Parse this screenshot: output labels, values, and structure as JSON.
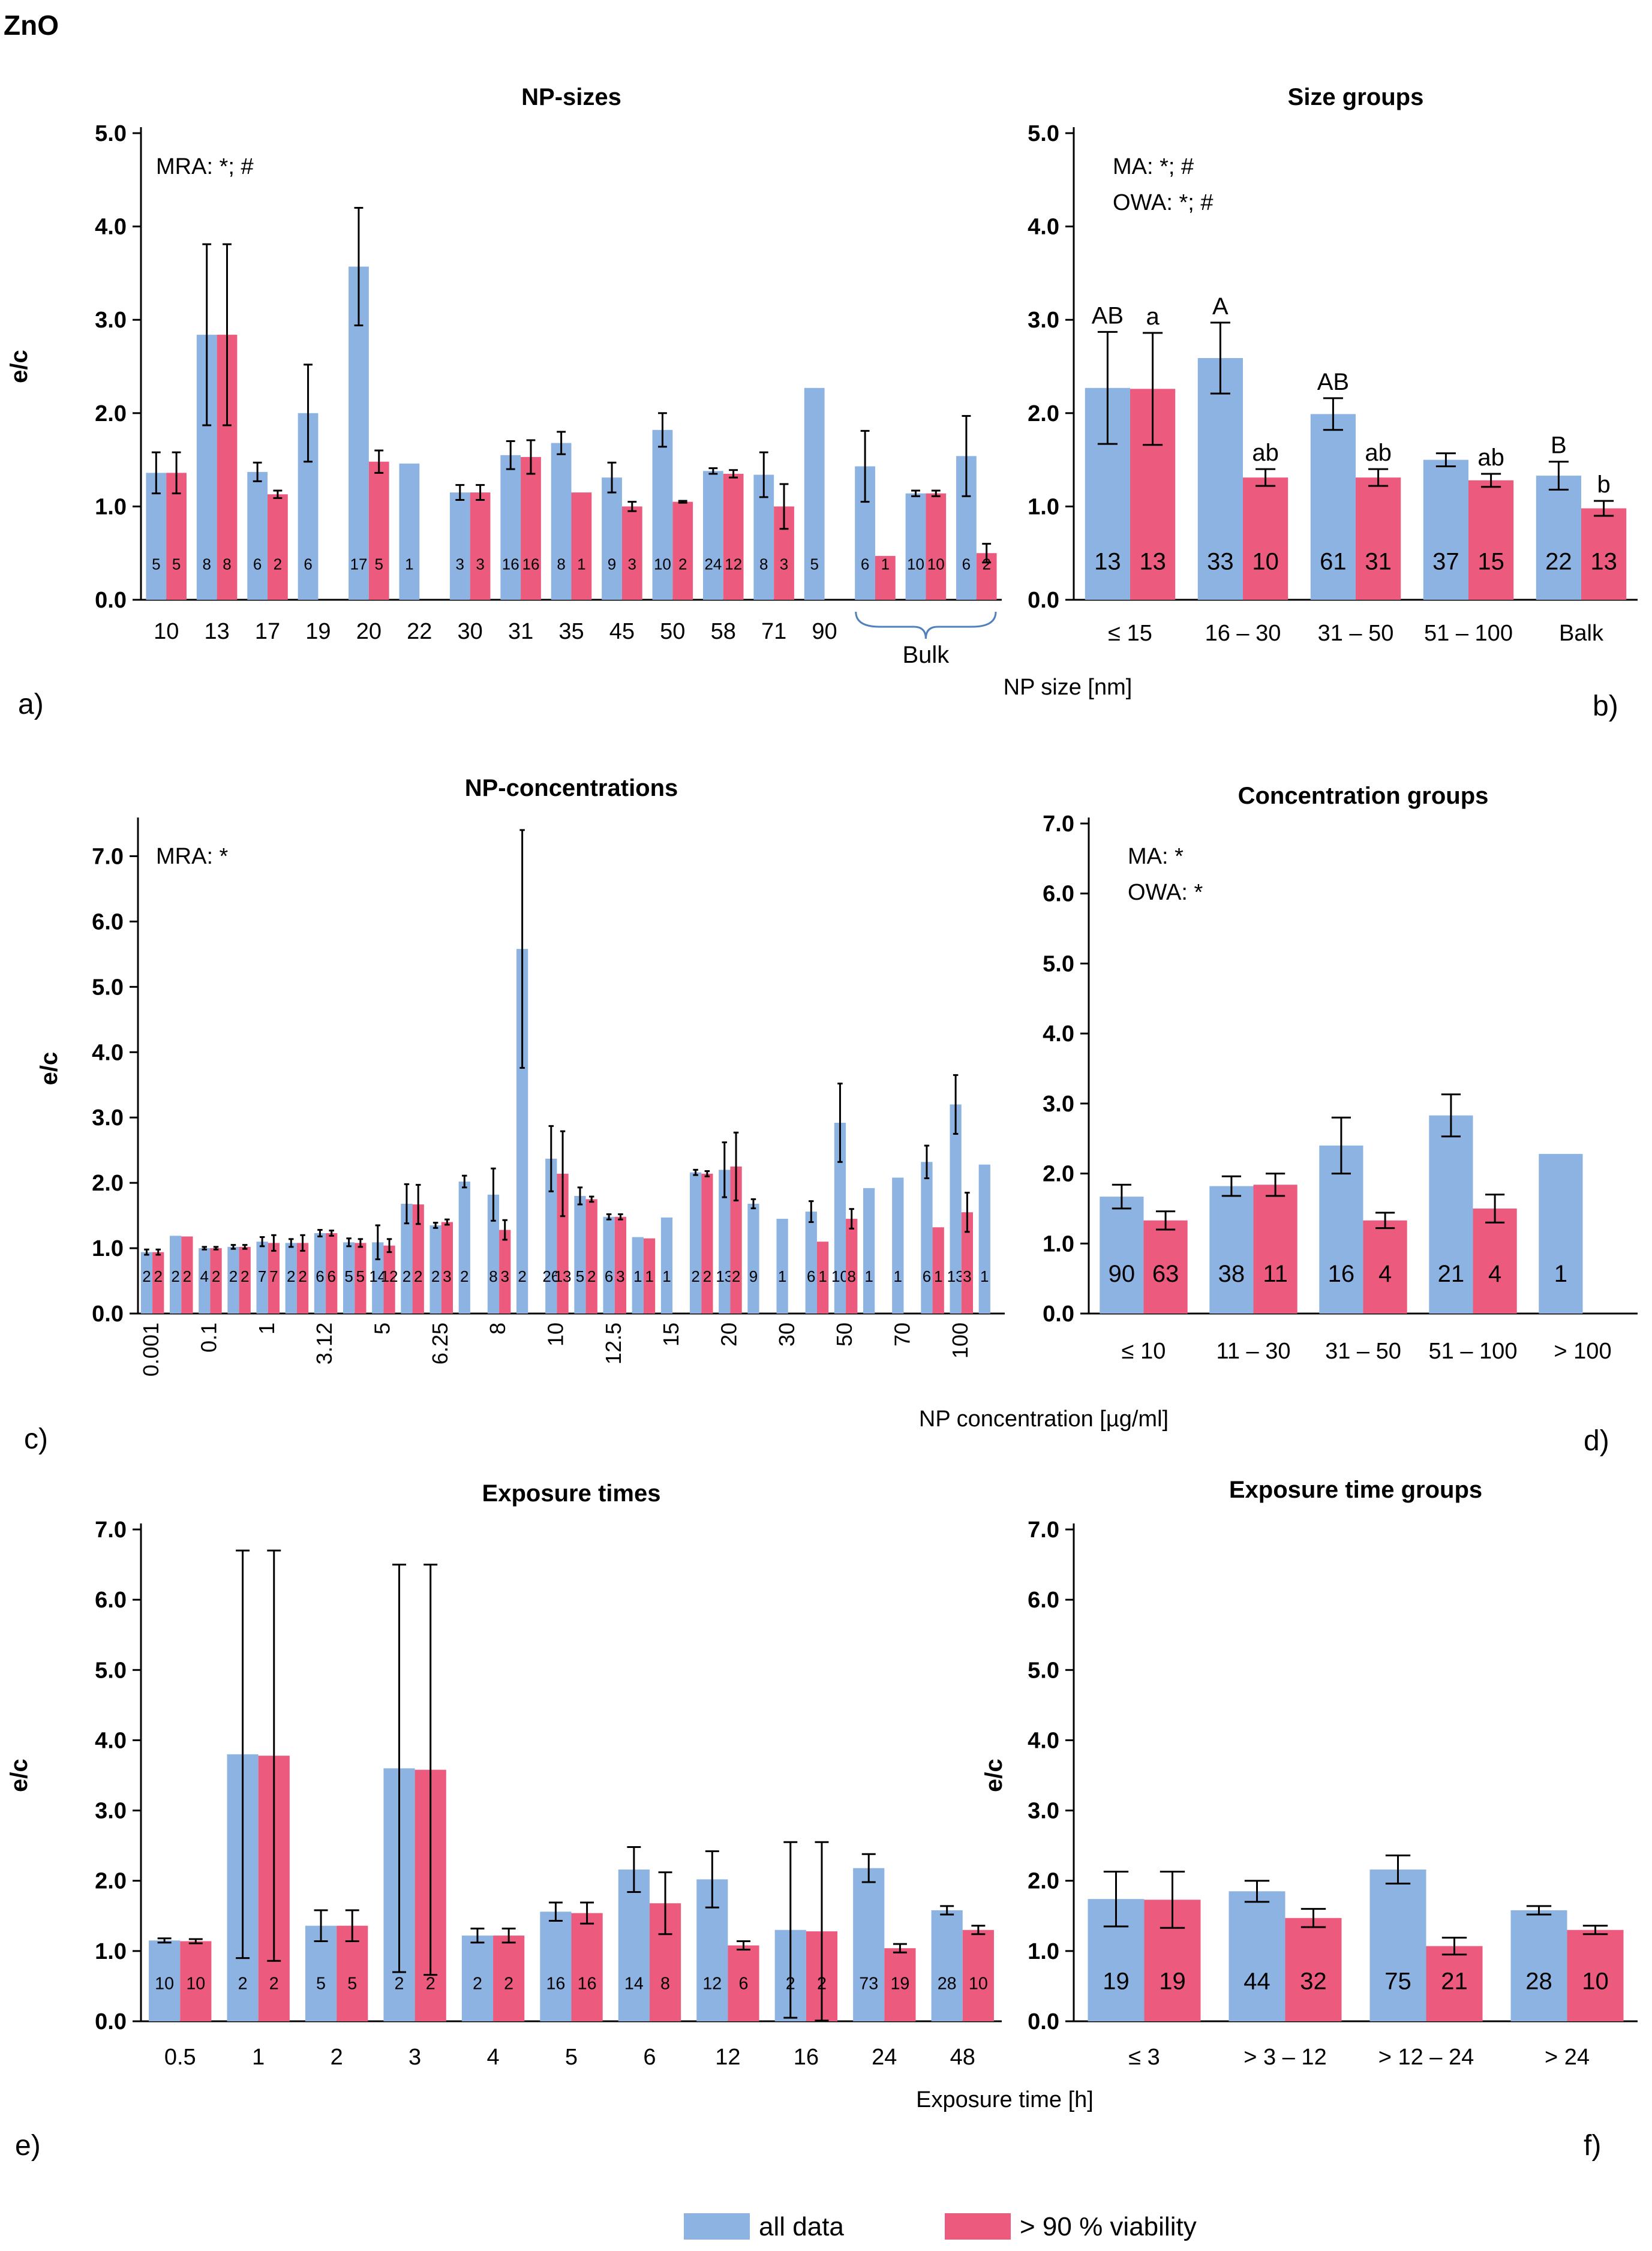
{
  "figure": {
    "title": "ZnO",
    "colors": {
      "all": "#8db3e2",
      "viab": "#ec5b7d",
      "axis": "#000000"
    },
    "legend": {
      "all_label": "all data",
      "viab_label": "> 90 % viability"
    },
    "xlabels": {
      "row1": "NP size [nm]",
      "row2": "NP concentration [µg/ml]",
      "row3": "Exposure time [h]"
    }
  },
  "chart_data": [
    {
      "id": "a",
      "panel_label": "a)",
      "type": "bar",
      "title": "NP-sizes",
      "ylabel": "e/c",
      "ylim": [
        0,
        5
      ],
      "yticks": [
        "0.0",
        "1.0",
        "2.0",
        "3.0",
        "4.0",
        "5.0"
      ],
      "annotation": [
        "MRA: *; #"
      ],
      "categories": [
        "10",
        "13",
        "17",
        "19",
        "20",
        "22",
        "30",
        "31",
        "35",
        "45",
        "50",
        "58",
        "71",
        "90",
        "Bulk1",
        "Bulk2",
        "Bulk3"
      ],
      "tick_labels": [
        "10",
        "13",
        "17",
        "19",
        "20",
        "22",
        "30",
        "31",
        "35",
        "45",
        "50",
        "58",
        "71",
        "90",
        "",
        "",
        ""
      ],
      "bracket_label": "Bulk",
      "series": [
        {
          "name": "all data",
          "values": [
            1.36,
            2.84,
            1.37,
            2.0,
            3.57,
            1.46,
            1.15,
            1.55,
            1.68,
            1.31,
            1.82,
            1.38,
            1.34,
            2.27,
            1.43,
            1.14,
            1.54
          ],
          "errors": [
            0.22,
            0.97,
            0.1,
            0.52,
            0.63,
            null,
            0.08,
            0.15,
            0.12,
            0.16,
            0.18,
            0.03,
            0.24,
            null,
            0.38,
            0.03,
            0.43
          ],
          "n": [
            "5",
            "8",
            "6",
            "6",
            "17",
            "1",
            "3",
            "16",
            "8",
            "9",
            "10",
            "24",
            "8",
            "5",
            "6",
            "10",
            "6"
          ]
        },
        {
          "name": "> 90 % viability",
          "values": [
            1.36,
            2.84,
            1.13,
            null,
            1.48,
            null,
            1.15,
            1.53,
            1.15,
            1.0,
            1.05,
            1.35,
            1.0,
            null,
            0.47,
            1.14,
            0.5
          ],
          "errors": [
            0.22,
            0.97,
            0.04,
            null,
            0.12,
            null,
            0.08,
            0.18,
            null,
            0.05,
            0.01,
            0.04,
            0.24,
            null,
            null,
            0.03,
            0.1
          ],
          "n": [
            "5",
            "8",
            "2",
            "",
            "5",
            "",
            "3",
            "16",
            "1",
            "3",
            "2",
            "12",
            "3",
            "",
            "1",
            "10",
            "2"
          ]
        }
      ],
      "letters": []
    },
    {
      "id": "b",
      "panel_label": "b)",
      "type": "bar",
      "title": "Size groups",
      "ylabel": "",
      "ylim": [
        0,
        5
      ],
      "yticks": [
        "0.0",
        "1.0",
        "2.0",
        "3.0",
        "4.0",
        "5.0"
      ],
      "annotation": [
        "MA: *; #",
        "OWA: *; #"
      ],
      "categories": [
        "≤ 15",
        "16 – 30",
        "31 – 50",
        "51 – 100",
        "Balk"
      ],
      "tick_labels": [
        "≤ 15",
        "16 – 30",
        "31 – 50",
        "51 – 100",
        "Balk"
      ],
      "series": [
        {
          "name": "all data",
          "values": [
            2.27,
            2.59,
            1.99,
            1.5,
            1.33
          ],
          "errors": [
            0.6,
            0.38,
            0.17,
            0.07,
            0.15
          ],
          "n": [
            "13",
            "33",
            "61",
            "37",
            "22"
          ]
        },
        {
          "name": "> 90 % viability",
          "values": [
            2.26,
            1.31,
            1.31,
            1.28,
            0.98
          ],
          "errors": [
            0.6,
            0.09,
            0.09,
            0.07,
            0.08
          ],
          "n": [
            "13",
            "10",
            "31",
            "15",
            "13"
          ]
        }
      ],
      "letters": [
        {
          "group": 0,
          "series": 0,
          "text": "AB"
        },
        {
          "group": 0,
          "series": 1,
          "text": "a"
        },
        {
          "group": 1,
          "series": 0,
          "text": "A"
        },
        {
          "group": 1,
          "series": 1,
          "text": "ab"
        },
        {
          "group": 2,
          "series": 0,
          "text": "AB"
        },
        {
          "group": 2,
          "series": 1,
          "text": "ab"
        },
        {
          "group": 3,
          "series": 1,
          "text": "ab"
        },
        {
          "group": 4,
          "series": 0,
          "text": "B"
        },
        {
          "group": 4,
          "series": 1,
          "text": "b"
        }
      ]
    },
    {
      "id": "c",
      "panel_label": "c)",
      "type": "bar",
      "title": "NP-concentrations",
      "ylabel": "e/c",
      "ylim": [
        0,
        7.5
      ],
      "yticks": [
        "0.0",
        "1.0",
        "2.0",
        "3.0",
        "4.0",
        "5.0",
        "6.0",
        "7.0"
      ],
      "annotation": [
        "MRA: *"
      ],
      "rotate_ticks": true,
      "categories": [
        "0.001",
        "0.01",
        "0.1",
        "0.5",
        "1",
        "2",
        "3.12",
        "4",
        "5",
        "6",
        "6.25",
        "7",
        "8",
        "9",
        "10",
        "11",
        "12.5",
        "14",
        "15",
        "18",
        "20",
        "25",
        "30",
        "40",
        "50",
        "60",
        "70",
        "80",
        "100",
        "110"
      ],
      "tick_labels": [
        "0.001",
        "",
        "0.1",
        "",
        "1",
        "",
        "3.12",
        "",
        "5",
        "",
        "6.25",
        "",
        "8",
        "",
        "10",
        "",
        "12.5",
        "",
        "15",
        "",
        "20",
        "",
        "30",
        "",
        "50",
        "",
        "70",
        "",
        "100",
        ""
      ],
      "series": [
        {
          "name": "all data",
          "values": [
            0.94,
            1.19,
            1.0,
            1.02,
            1.1,
            1.08,
            1.23,
            1.09,
            1.09,
            1.68,
            1.35,
            2.02,
            1.82,
            5.58,
            2.37,
            1.8,
            1.48,
            1.17,
            1.47,
            2.16,
            2.2,
            1.68,
            1.45,
            1.56,
            2.92,
            1.92,
            2.08,
            2.32,
            3.2,
            2.28
          ],
          "errors": [
            0.04,
            null,
            0.02,
            0.03,
            0.07,
            0.06,
            0.05,
            0.06,
            0.26,
            0.3,
            0.04,
            0.09,
            0.4,
            1.82,
            0.5,
            0.13,
            0.04,
            null,
            null,
            0.04,
            0.42,
            0.07,
            null,
            0.16,
            0.6,
            null,
            null,
            0.25,
            0.45,
            null
          ],
          "n": [
            "2",
            "2",
            "4",
            "2",
            "7",
            "2",
            "6",
            "5",
            "14",
            "2",
            "2",
            "2",
            "8",
            "2",
            "26",
            "5",
            "6",
            "1",
            "1",
            "2",
            "13",
            "9",
            "1",
            "6",
            "10",
            "1",
            "1",
            "6",
            "13",
            "1"
          ]
        },
        {
          "name": "> 90 % viability",
          "values": [
            0.94,
            1.18,
            1.0,
            1.02,
            1.08,
            1.08,
            1.23,
            1.08,
            1.04,
            1.67,
            1.4,
            null,
            1.28,
            null,
            2.14,
            1.75,
            1.48,
            1.15,
            null,
            2.14,
            2.25,
            null,
            null,
            1.1,
            1.45,
            null,
            null,
            1.32,
            1.55,
            null
          ],
          "errors": [
            0.04,
            null,
            0.02,
            0.03,
            0.12,
            0.12,
            0.04,
            0.06,
            0.1,
            0.3,
            0.04,
            null,
            0.15,
            null,
            0.65,
            0.04,
            0.04,
            null,
            null,
            0.04,
            0.52,
            null,
            null,
            null,
            0.15,
            null,
            null,
            null,
            0.3,
            null
          ],
          "n": [
            "2",
            "2",
            "2",
            "2",
            "7",
            "2",
            "6",
            "5",
            "12",
            "2",
            "3",
            "",
            "3",
            "",
            "13",
            "2",
            "3",
            "1",
            "",
            "2",
            "2",
            "",
            "",
            "1",
            "8",
            "",
            "",
            "1",
            "3",
            ""
          ]
        }
      ],
      "letters": []
    },
    {
      "id": "d",
      "panel_label": "d)",
      "type": "bar",
      "title": "Concentration groups",
      "ylabel": "",
      "ylim": [
        0,
        7
      ],
      "yticks": [
        "0.0",
        "1.0",
        "2.0",
        "3.0",
        "4.0",
        "5.0",
        "6.0",
        "7.0"
      ],
      "annotation": [
        "MA:  *",
        "OWA: *"
      ],
      "categories": [
        "≤ 10",
        "11 – 30",
        "31 – 50",
        "51 – 100",
        "> 100"
      ],
      "tick_labels": [
        "≤ 10",
        "11 – 30",
        "31 – 50",
        "51 – 100",
        "> 100"
      ],
      "series": [
        {
          "name": "all data",
          "values": [
            1.67,
            1.82,
            2.4,
            2.83,
            2.28
          ],
          "errors": [
            0.17,
            0.14,
            0.4,
            0.3,
            null
          ],
          "n": [
            "90",
            "38",
            "16",
            "21",
            "1"
          ]
        },
        {
          "name": "> 90 % viability",
          "values": [
            1.33,
            1.84,
            1.33,
            1.5,
            null
          ],
          "errors": [
            0.13,
            0.16,
            0.11,
            0.2,
            null
          ],
          "n": [
            "63",
            "11",
            "4",
            "4",
            ""
          ]
        }
      ],
      "letters": []
    },
    {
      "id": "e",
      "panel_label": "e)",
      "type": "bar",
      "title": "Exposure times",
      "ylabel": "e/c",
      "ylim": [
        0,
        7
      ],
      "yticks": [
        "0.0",
        "1.0",
        "2.0",
        "3.0",
        "4.0",
        "5.0",
        "6.0",
        "7.0"
      ],
      "annotation": [],
      "categories": [
        "0.5",
        "1",
        "2",
        "3",
        "4",
        "5",
        "6",
        "12",
        "16",
        "24",
        "48"
      ],
      "tick_labels": [
        "0.5",
        "1",
        "2",
        "3",
        "4",
        "5",
        "6",
        "12",
        "16",
        "24",
        "48"
      ],
      "series": [
        {
          "name": "all data",
          "values": [
            1.15,
            3.8,
            1.36,
            3.6,
            1.22,
            1.56,
            2.16,
            2.02,
            1.3,
            2.18,
            1.58
          ],
          "errors": [
            0.03,
            2.9,
            0.22,
            2.9,
            0.1,
            0.13,
            0.32,
            0.4,
            1.25,
            0.2,
            0.06
          ],
          "n": [
            "10",
            "2",
            "5",
            "2",
            "2",
            "16",
            "14",
            "12",
            "2",
            "73",
            "28"
          ]
        },
        {
          "name": "> 90 % viability",
          "values": [
            1.14,
            3.78,
            1.36,
            3.58,
            1.22,
            1.54,
            1.68,
            1.08,
            1.28,
            1.04,
            1.3
          ],
          "errors": [
            0.03,
            2.92,
            0.22,
            2.92,
            0.1,
            0.15,
            0.44,
            0.06,
            1.27,
            0.06,
            0.06
          ],
          "n": [
            "10",
            "2",
            "5",
            "2",
            "2",
            "16",
            "8",
            "6",
            "2",
            "19",
            "10"
          ]
        }
      ],
      "letters": []
    },
    {
      "id": "f",
      "panel_label": "f)",
      "type": "bar",
      "title": "Exposure time groups",
      "ylabel": "e/c",
      "ylim": [
        0,
        7
      ],
      "yticks": [
        "0.0",
        "1.0",
        "2.0",
        "3.0",
        "4.0",
        "5.0",
        "6.0",
        "7.0"
      ],
      "annotation": [],
      "categories": [
        "≤ 3",
        "> 3 – 12",
        "> 12 – 24",
        "> 24"
      ],
      "tick_labels": [
        "≤ 3",
        "> 3 – 12",
        "> 12 – 24",
        "> 24"
      ],
      "series": [
        {
          "name": "all data",
          "values": [
            1.74,
            1.85,
            2.16,
            1.58
          ],
          "errors": [
            0.39,
            0.15,
            0.2,
            0.06
          ],
          "n": [
            "19",
            "44",
            "75",
            "28"
          ]
        },
        {
          "name": "> 90 % viability",
          "values": [
            1.73,
            1.47,
            1.07,
            1.3
          ],
          "errors": [
            0.4,
            0.13,
            0.12,
            0.06
          ],
          "n": [
            "19",
            "32",
            "21",
            "10"
          ]
        }
      ],
      "letters": []
    }
  ]
}
